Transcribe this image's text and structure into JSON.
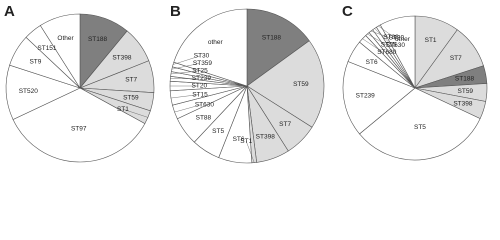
{
  "chart_data": [
    {
      "type": "pie",
      "title": "A",
      "categories": [
        "ST188",
        "ST398",
        "ST7",
        "ST59",
        "ST1",
        "ST97",
        "ST520",
        "ST9",
        "ST151",
        "Other"
      ],
      "values": [
        11,
        8,
        7,
        4,
        3,
        35,
        12,
        7,
        4,
        9
      ],
      "colors": [
        "#7f7f7f",
        "#dcdcdc",
        "#dcdcdc",
        "#dcdcdc",
        "#dcdcdc",
        "#ffffff",
        "#ffffff",
        "#ffffff",
        "#ffffff",
        "#ffffff"
      ]
    },
    {
      "type": "pie",
      "title": "B",
      "categories": [
        "ST188",
        "ST59",
        "ST7",
        "ST398",
        "ST1",
        "ST6",
        "ST5",
        "ST88",
        "ST630",
        "ST15",
        "ST20",
        "ST239",
        "ST25",
        "ST359",
        "ST30",
        "other"
      ],
      "values": [
        15,
        19,
        7,
        7,
        1,
        7,
        6,
        6,
        3,
        3,
        2,
        1,
        1,
        1,
        1,
        20
      ],
      "colors": [
        "#7f7f7f",
        "#dcdcdc",
        "#dcdcdc",
        "#dcdcdc",
        "#dcdcdc",
        "#ffffff",
        "#ffffff",
        "#ffffff",
        "#ffffff",
        "#ffffff",
        "#ffffff",
        "#ffffff",
        "#ffffff",
        "#ffffff",
        "#ffffff",
        "#ffffff"
      ]
    },
    {
      "type": "pie",
      "title": "C",
      "categories": [
        "ST1",
        "ST7",
        "ST188",
        "ST59",
        "ST398",
        "ST5",
        "ST239",
        "ST6",
        "ST680",
        "ST15",
        "ST88",
        "ST630",
        "ST20",
        "other"
      ],
      "values": [
        10,
        10,
        4,
        4,
        4,
        32,
        17,
        5,
        2,
        1,
        1,
        1,
        1,
        8
      ],
      "colors": [
        "#dcdcdc",
        "#dcdcdc",
        "#7f7f7f",
        "#dcdcdc",
        "#dcdcdc",
        "#ffffff",
        "#ffffff",
        "#ffffff",
        "#ffffff",
        "#ffffff",
        "#ffffff",
        "#ffffff",
        "#ffffff",
        "#ffffff"
      ]
    }
  ]
}
